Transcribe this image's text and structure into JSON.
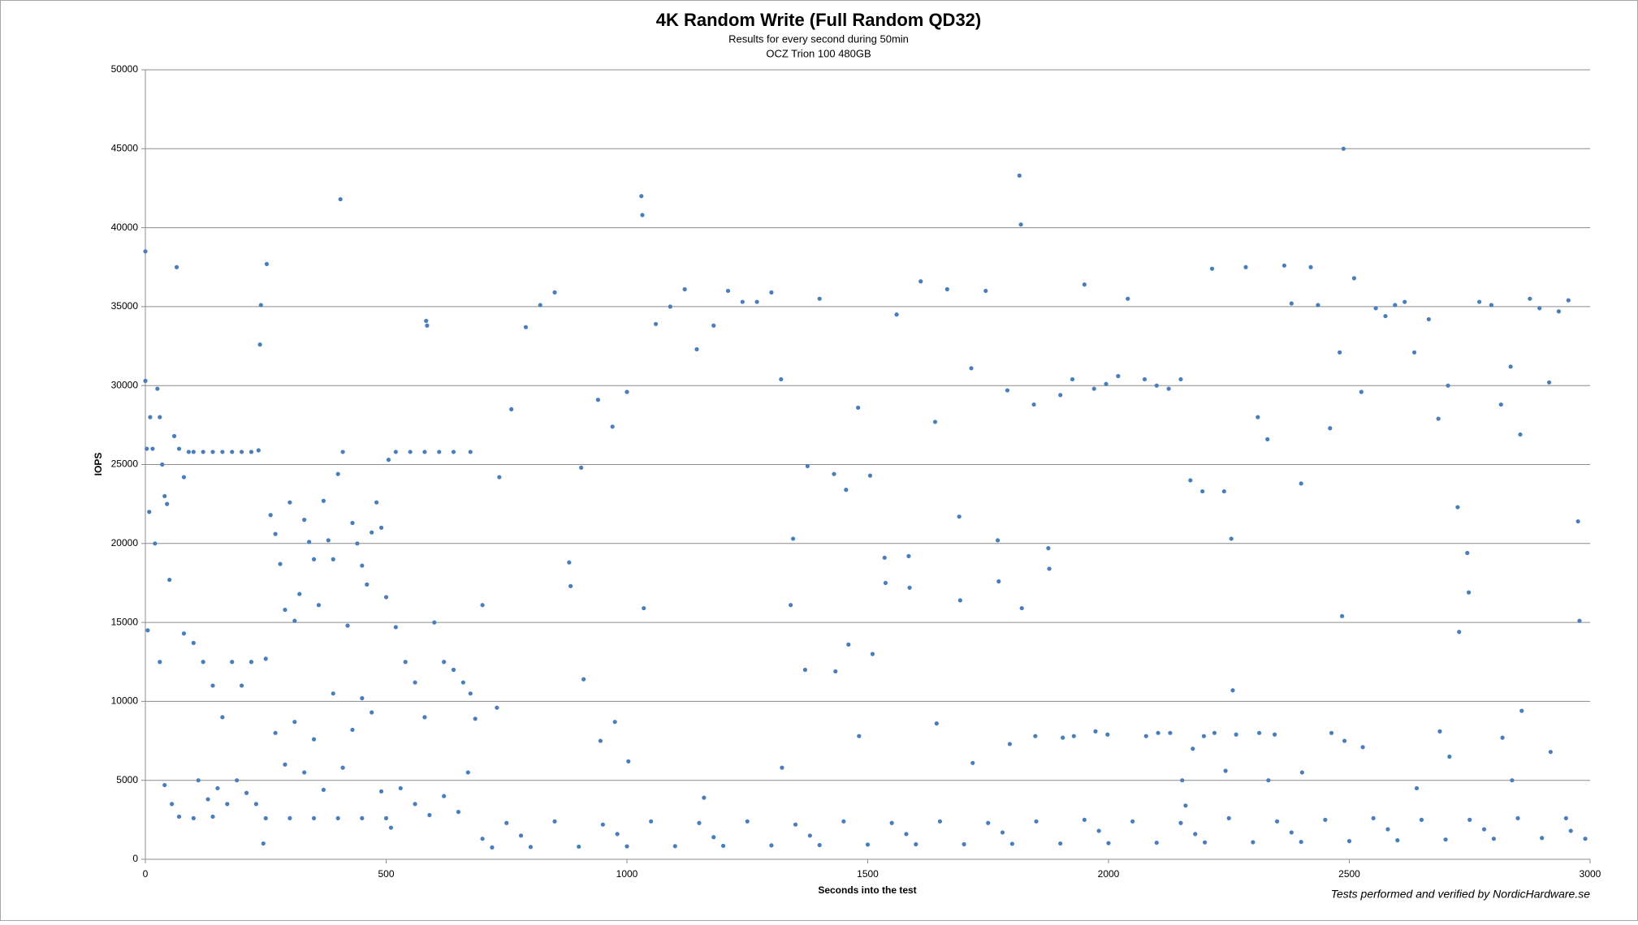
{
  "chart_data": {
    "type": "scatter",
    "title": "4K Random Write (Full Random QD32)",
    "subtitle": [
      "Results for every second during 50min",
      "OCZ Trion 100  480GB"
    ],
    "x_label": "Seconds into the test",
    "y_label": "IOPS",
    "footnote": "Tests performed and verified by NordicHardware.se",
    "xlim": [
      0,
      3000
    ],
    "xticks": [
      0,
      500,
      1000,
      1500,
      2000,
      2500,
      3000
    ],
    "ylim": [
      0,
      50000
    ],
    "yticks": [
      0,
      5000,
      10000,
      15000,
      20000,
      25000,
      30000,
      35000,
      40000,
      45000,
      50000
    ],
    "grid": true,
    "x": [
      0,
      0,
      3,
      5,
      8,
      10,
      15,
      20,
      25,
      30,
      35,
      40,
      45,
      50,
      60,
      65,
      70,
      80,
      90,
      100,
      120,
      140,
      160,
      180,
      200,
      220,
      235,
      240,
      238,
      252,
      30,
      40,
      55,
      70,
      80,
      100,
      120,
      140,
      160,
      180,
      200,
      220,
      110,
      130,
      150,
      170,
      190,
      210,
      230,
      100,
      140,
      250,
      300,
      350,
      400,
      450,
      500,
      245,
      250,
      260,
      270,
      280,
      290,
      300,
      310,
      320,
      330,
      340,
      350,
      360,
      370,
      380,
      390,
      400,
      405,
      410,
      420,
      430,
      440,
      450,
      460,
      470,
      480,
      490,
      500,
      505,
      270,
      290,
      310,
      330,
      350,
      370,
      390,
      410,
      430,
      450,
      470,
      490,
      510,
      520,
      550,
      580,
      610,
      640,
      675,
      583,
      585,
      520,
      540,
      560,
      580,
      600,
      620,
      640,
      660,
      675,
      530,
      560,
      590,
      620,
      650,
      670,
      685,
      700,
      730,
      735,
      700,
      720,
      800,
      900,
      1000,
      1100,
      1200,
      1300,
      1400,
      1500,
      1600,
      1700,
      1800,
      1900,
      2000,
      2100,
      2200,
      2300,
      2400,
      2500,
      2600,
      2700,
      2800,
      2900,
      2990,
      750,
      850,
      950,
      1050,
      1150,
      1250,
      1350,
      1450,
      1550,
      1650,
      1750,
      1850,
      1950,
      2050,
      2150,
      2250,
      2350,
      2450,
      2550,
      2650,
      2750,
      2850,
      2950,
      780,
      980,
      1180,
      1380,
      1580,
      1780,
      1980,
      2180,
      2380,
      2580,
      2780,
      2960,
      760,
      790,
      820,
      850,
      880,
      883,
      905,
      910,
      940,
      945,
      970,
      975,
      1000,
      1003,
      1030,
      1032,
      1035,
      1060,
      1090,
      1120,
      1145,
      1160,
      1180,
      1210,
      1240,
      1270,
      1300,
      1320,
      1322,
      1340,
      1345,
      1370,
      1375,
      1400,
      1430,
      1433,
      1455,
      1460,
      1480,
      1482,
      1505,
      1510,
      1535,
      1537,
      1560,
      1585,
      1587,
      1610,
      1640,
      1643,
      1665,
      1690,
      1692,
      1715,
      1718,
      1745,
      1770,
      1772,
      1790,
      1795,
      1815,
      1818,
      1820,
      1845,
      1848,
      1875,
      1877,
      1900,
      1905,
      1925,
      1928,
      1950,
      1970,
      1973,
      1995,
      1998,
      2020,
      2040,
      2075,
      2078,
      2100,
      2103,
      2125,
      2128,
      2150,
      2153,
      2160,
      2170,
      2175,
      2195,
      2198,
      2215,
      2220,
      2240,
      2243,
      2255,
      2258,
      2265,
      2285,
      2310,
      2313,
      2330,
      2332,
      2345,
      2365,
      2380,
      2400,
      2402,
      2420,
      2435,
      2460,
      2463,
      2480,
      2485,
      2488,
      2490,
      2510,
      2525,
      2528,
      2555,
      2575,
      2595,
      2615,
      2635,
      2640,
      2665,
      2685,
      2688,
      2705,
      2708,
      2725,
      2728,
      2745,
      2748,
      2770,
      2795,
      2815,
      2818,
      2835,
      2838,
      2855,
      2858,
      2875,
      2895,
      2915,
      2918,
      2935,
      2955,
      2975,
      2978
    ],
    "series": [
      {
        "color": "#4a7ebb",
        "values": [
          38500,
          30300,
          26000,
          14500,
          22000,
          28000,
          26000,
          20000,
          29800,
          28000,
          25000,
          23000,
          22500,
          17700,
          26800,
          37500,
          26000,
          24200,
          25800,
          25800,
          25800,
          25800,
          25800,
          25800,
          25800,
          25800,
          25900,
          35100,
          32600,
          37700,
          12500,
          4700,
          3500,
          2700,
          14300,
          13700,
          12500,
          11000,
          9000,
          12500,
          11000,
          12500,
          5000,
          3800,
          4500,
          3500,
          5000,
          4200,
          3500,
          2600,
          2700,
          2600,
          2600,
          2600,
          2600,
          2600,
          2600,
          1000,
          12700,
          21800,
          20600,
          18700,
          15800,
          22600,
          15100,
          16800,
          21500,
          20100,
          19000,
          16100,
          22700,
          20200,
          19000,
          24400,
          41800,
          25800,
          14800,
          21300,
          20000,
          18600,
          17400,
          20700,
          22600,
          21000,
          16600,
          25300,
          8000,
          6000,
          8700,
          5500,
          7600,
          4400,
          10500,
          5800,
          8200,
          10200,
          9300,
          4300,
          2000,
          25800,
          25800,
          25800,
          25800,
          25800,
          25800,
          34100,
          33800,
          14700,
          12500,
          11200,
          9000,
          15000,
          12500,
          12000,
          11200,
          10500,
          4500,
          3500,
          2800,
          4000,
          3000,
          5500,
          8900,
          16100,
          9600,
          24200,
          1300,
          750,
          780,
          800,
          820,
          830,
          850,
          880,
          900,
          930,
          950,
          950,
          980,
          1000,
          1020,
          1050,
          1070,
          1080,
          1100,
          1150,
          1200,
          1250,
          1300,
          1350,
          1300,
          2300,
          2400,
          2200,
          2400,
          2300,
          2400,
          2200,
          2400,
          2300,
          2400,
          2300,
          2400,
          2500,
          2400,
          2300,
          2600,
          2400,
          2500,
          2600,
          2500,
          2500,
          2600,
          2600,
          1500,
          1600,
          1400,
          1500,
          1600,
          1700,
          1800,
          1600,
          1700,
          1900,
          1900,
          1800,
          28500,
          33700,
          35100,
          35900,
          18800,
          17300,
          24800,
          11400,
          29100,
          7500,
          27400,
          8700,
          29600,
          6200,
          42000,
          40800,
          15900,
          33900,
          35000,
          36100,
          32300,
          3900,
          33800,
          36000,
          35300,
          35300,
          35900,
          30400,
          5800,
          16100,
          20300,
          12000,
          24900,
          35500,
          24400,
          11900,
          23400,
          13600,
          28600,
          7800,
          24300,
          13000,
          19100,
          17500,
          34500,
          19200,
          17200,
          36600,
          27700,
          8600,
          36100,
          21700,
          16400,
          31100,
          6100,
          36000,
          20200,
          17600,
          29700,
          7300,
          43300,
          40200,
          15900,
          28800,
          7800,
          19700,
          18400,
          29400,
          7700,
          30400,
          7800,
          36400,
          29800,
          8100,
          30100,
          7900,
          30600,
          35500,
          30400,
          7800,
          30000,
          8000,
          29800,
          8000,
          30400,
          5000,
          3400,
          24000,
          7000,
          23300,
          7800,
          37400,
          8000,
          23300,
          5600,
          20300,
          10700,
          7900,
          37500,
          28000,
          8000,
          26600,
          5000,
          7900,
          37600,
          35200,
          23800,
          5500,
          37500,
          35100,
          27300,
          8000,
          32100,
          15400,
          45000,
          7500,
          36800,
          29600,
          7100,
          34900,
          34400,
          35100,
          35300,
          32100,
          4500,
          34200,
          27900,
          8100,
          30000,
          6500,
          22300,
          14400,
          19400,
          16900,
          35300,
          35100,
          28800,
          7700,
          31200,
          5000,
          26900,
          9400,
          35500,
          34900,
          30200,
          6800,
          34700,
          35400,
          21400,
          15100
        ]
      }
    ]
  }
}
